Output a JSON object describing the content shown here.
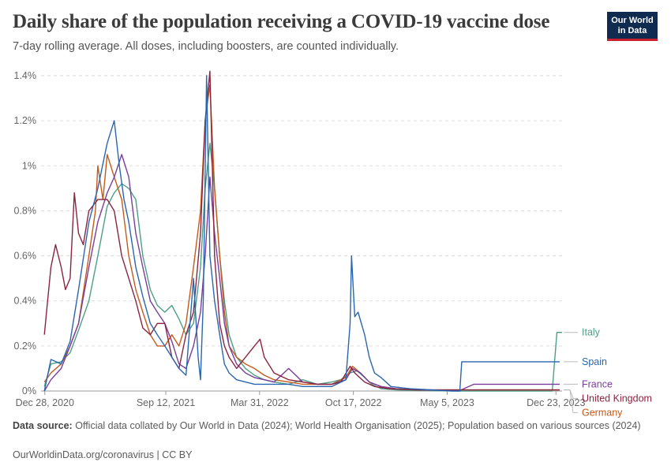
{
  "header": {
    "title": "Daily share of the population receiving a COVID-19 vaccine dose",
    "subtitle": "7-day rolling average. All doses, including boosters, are counted individually.",
    "logo_line1": "Our World",
    "logo_line2": "in Data"
  },
  "footer": {
    "source_label": "Data source:",
    "source_text": "Official data collated by Our World in Data (2024); World Health Organisation (2025); Population based on various sources (2024)",
    "credit": "OurWorldinData.org/coronavirus | CC BY"
  },
  "colors": {
    "Italy": "#4c9f87",
    "Spain": "#2a66b0",
    "France": "#7a3d9c",
    "United Kingdom": "#8a2440",
    "Germany": "#c55a1a"
  },
  "chart_data": {
    "type": "line",
    "title": "Daily share of the population receiving a COVID-19 vaccine dose",
    "subtitle": "7-day rolling average. All doses, including boosters, are counted individually.",
    "x_tick_labels": [
      "Dec 28, 2020",
      "Sep 12, 2021",
      "Mar 31, 2022",
      "Oct 17, 2022",
      "May 5, 2023",
      "Dec 23, 2023"
    ],
    "x_tick_days": [
      0,
      258,
      458,
      658,
      858,
      1090
    ],
    "y_ticks": [
      0,
      0.2,
      0.4,
      0.6,
      0.8,
      1,
      1.2,
      1.4
    ],
    "y_tick_labels": [
      "0%",
      "0.2%",
      "0.4%",
      "0.6%",
      "0.8%",
      "1%",
      "1.2%",
      "1.4%"
    ],
    "ylim": [
      0,
      1.4
    ],
    "y_unit": "%",
    "grid": true,
    "legend_placement": "right",
    "series": [
      {
        "name": "Italy",
        "x": [
          "2020-12-27",
          "2021-01-10",
          "2021-02-01",
          "2021-02-20",
          "2021-03-10",
          "2021-04-01",
          "2021-04-20",
          "2021-05-10",
          "2021-05-25",
          "2021-06-10",
          "2021-06-25",
          "2021-07-10",
          "2021-07-25",
          "2021-08-10",
          "2021-08-25",
          "2021-09-10",
          "2021-09-25",
          "2021-10-10",
          "2021-10-25",
          "2021-11-10",
          "2021-11-25",
          "2021-12-05",
          "2021-12-15",
          "2021-12-25",
          "2022-01-05",
          "2022-01-15",
          "2022-01-25",
          "2022-02-10",
          "2022-03-01",
          "2022-03-20",
          "2022-04-10",
          "2022-05-01",
          "2022-06-01",
          "2022-07-01",
          "2022-08-01",
          "2022-09-01",
          "2022-09-20",
          "2022-10-10",
          "2022-10-25",
          "2022-11-10",
          "2022-11-25",
          "2022-12-15",
          "2023-01-15",
          "2023-03-01",
          "2023-06-01",
          "2023-10-01",
          "2023-12-15",
          "2023-12-25",
          "2024-01-05"
        ],
        "y": [
          0.02,
          0.12,
          0.13,
          0.17,
          0.27,
          0.4,
          0.6,
          0.82,
          0.88,
          0.92,
          0.9,
          0.85,
          0.6,
          0.45,
          0.38,
          0.35,
          0.38,
          0.32,
          0.25,
          0.3,
          0.55,
          0.9,
          1.1,
          0.9,
          0.6,
          0.4,
          0.25,
          0.15,
          0.1,
          0.07,
          0.05,
          0.04,
          0.03,
          0.05,
          0.03,
          0.04,
          0.05,
          0.08,
          0.09,
          0.06,
          0.03,
          0.01,
          0.005,
          0.002,
          0,
          0,
          0,
          0.26,
          0.26
        ]
      },
      {
        "name": "Spain",
        "x": [
          "2020-12-27",
          "2021-01-10",
          "2021-02-01",
          "2021-02-20",
          "2021-03-10",
          "2021-04-01",
          "2021-04-20",
          "2021-05-10",
          "2021-05-25",
          "2021-06-05",
          "2021-06-15",
          "2021-06-25",
          "2021-07-10",
          "2021-07-25",
          "2021-08-10",
          "2021-08-25",
          "2021-09-10",
          "2021-09-25",
          "2021-10-10",
          "2021-10-25",
          "2021-11-10",
          "2021-11-20",
          "2021-11-25",
          "2021-12-01",
          "2021-12-08",
          "2021-12-15",
          "2021-12-25",
          "2022-01-05",
          "2022-01-15",
          "2022-01-25",
          "2022-02-10",
          "2022-03-01",
          "2022-03-20",
          "2022-04-10",
          "2022-05-01",
          "2022-06-01",
          "2022-07-01",
          "2022-08-01",
          "2022-09-01",
          "2022-10-01",
          "2022-10-10",
          "2022-10-13",
          "2022-10-20",
          "2022-10-27",
          "2022-11-10",
          "2022-11-20",
          "2022-12-01",
          "2022-12-15",
          "2023-01-05",
          "2023-02-15",
          "2023-05-15",
          "2023-06-01",
          "2023-06-05",
          "2023-12-31"
        ],
        "y": [
          0,
          0.14,
          0.12,
          0.22,
          0.45,
          0.75,
          0.9,
          1.1,
          1.2,
          1.0,
          0.85,
          0.75,
          0.55,
          0.42,
          0.3,
          0.25,
          0.2,
          0.15,
          0.1,
          0.07,
          0.5,
          0.15,
          0.05,
          0.4,
          1.4,
          0.6,
          0.4,
          0.25,
          0.12,
          0.08,
          0.05,
          0.04,
          0.03,
          0.03,
          0.03,
          0.03,
          0.02,
          0.02,
          0.02,
          0.05,
          0.3,
          0.6,
          0.33,
          0.35,
          0.25,
          0.15,
          0.08,
          0.06,
          0.02,
          0.01,
          0,
          0,
          0.13,
          0.13
        ]
      },
      {
        "name": "France",
        "x": [
          "2020-12-27",
          "2021-01-10",
          "2021-02-01",
          "2021-02-20",
          "2021-03-10",
          "2021-04-01",
          "2021-04-20",
          "2021-05-10",
          "2021-05-25",
          "2021-06-10",
          "2021-06-25",
          "2021-07-10",
          "2021-07-25",
          "2021-08-10",
          "2021-08-25",
          "2021-09-10",
          "2021-09-25",
          "2021-10-10",
          "2021-10-25",
          "2021-11-10",
          "2021-11-25",
          "2021-12-05",
          "2021-12-15",
          "2021-12-25",
          "2022-01-05",
          "2022-01-15",
          "2022-01-25",
          "2022-02-10",
          "2022-03-01",
          "2022-03-20",
          "2022-04-10",
          "2022-05-01",
          "2022-06-01",
          "2022-07-01",
          "2022-08-01",
          "2022-09-01",
          "2022-10-01",
          "2022-10-15",
          "2022-11-01",
          "2022-11-20",
          "2022-12-15",
          "2023-01-15",
          "2023-03-01",
          "2023-06-01",
          "2023-07-01",
          "2023-12-31"
        ],
        "y": [
          0,
          0.05,
          0.1,
          0.2,
          0.3,
          0.55,
          0.75,
          0.88,
          0.95,
          1.05,
          0.95,
          0.7,
          0.55,
          0.4,
          0.35,
          0.3,
          0.22,
          0.12,
          0.1,
          0.2,
          0.35,
          0.6,
          0.95,
          0.7,
          0.5,
          0.3,
          0.2,
          0.12,
          0.08,
          0.06,
          0.05,
          0.04,
          0.1,
          0.04,
          0.03,
          0.03,
          0.05,
          0.1,
          0.08,
          0.04,
          0.02,
          0.01,
          0.005,
          0.002,
          0.03,
          0.03
        ]
      },
      {
        "name": "United Kingdom",
        "x": [
          "2020-12-27",
          "2021-01-03",
          "2021-01-10",
          "2021-01-20",
          "2021-02-01",
          "2021-02-10",
          "2021-02-20",
          "2021-03-01",
          "2021-03-10",
          "2021-03-20",
          "2021-04-01",
          "2021-04-20",
          "2021-05-10",
          "2021-05-25",
          "2021-06-10",
          "2021-06-25",
          "2021-07-10",
          "2021-07-25",
          "2021-08-10",
          "2021-08-25",
          "2021-09-10",
          "2021-09-25",
          "2021-10-10",
          "2021-10-25",
          "2021-11-10",
          "2021-11-25",
          "2021-12-05",
          "2021-12-15",
          "2021-12-25",
          "2022-01-05",
          "2022-01-15",
          "2022-01-25",
          "2022-02-10",
          "2022-03-01",
          "2022-03-20",
          "2022-04-01",
          "2022-04-10",
          "2022-05-01",
          "2022-06-01",
          "2022-07-01",
          "2022-08-01",
          "2022-09-01",
          "2022-09-20",
          "2022-10-10",
          "2022-10-20",
          "2022-11-10",
          "2022-12-01",
          "2023-01-01",
          "2023-03-01",
          "2023-12-31"
        ],
        "y": [
          0.25,
          0.4,
          0.55,
          0.65,
          0.55,
          0.45,
          0.5,
          0.88,
          0.7,
          0.65,
          0.8,
          0.85,
          0.85,
          0.8,
          0.6,
          0.5,
          0.4,
          0.28,
          0.25,
          0.3,
          0.3,
          0.15,
          0.1,
          0.25,
          0.35,
          0.7,
          1.2,
          1.42,
          0.6,
          0.3,
          0.2,
          0.15,
          0.1,
          0.15,
          0.2,
          0.23,
          0.15,
          0.08,
          0.05,
          0.04,
          0.03,
          0.03,
          0.04,
          0.11,
          0.08,
          0.04,
          0.02,
          0.01,
          0.005,
          0.005
        ]
      },
      {
        "name": "Germany",
        "x": [
          "2020-12-27",
          "2021-01-10",
          "2021-02-01",
          "2021-02-20",
          "2021-03-10",
          "2021-04-01",
          "2021-04-15",
          "2021-04-20",
          "2021-05-01",
          "2021-05-10",
          "2021-05-25",
          "2021-06-10",
          "2021-06-25",
          "2021-07-10",
          "2021-07-25",
          "2021-08-10",
          "2021-08-25",
          "2021-09-10",
          "2021-09-25",
          "2021-10-10",
          "2021-10-25",
          "2021-11-10",
          "2021-11-25",
          "2021-12-05",
          "2021-12-15",
          "2021-12-25",
          "2022-01-05",
          "2022-01-15",
          "2022-01-25",
          "2022-02-10",
          "2022-03-01",
          "2022-03-20",
          "2022-04-10",
          "2022-05-01",
          "2022-06-01",
          "2022-07-01",
          "2022-08-01",
          "2022-09-01",
          "2022-10-01",
          "2022-10-15",
          "2022-11-01",
          "2022-11-20",
          "2022-12-15",
          "2023-01-15",
          "2023-03-01",
          "2023-12-31"
        ],
        "y": [
          0.04,
          0.08,
          0.12,
          0.2,
          0.3,
          0.6,
          0.8,
          1.0,
          0.85,
          1.05,
          0.95,
          0.85,
          0.6,
          0.45,
          0.35,
          0.25,
          0.2,
          0.2,
          0.25,
          0.2,
          0.3,
          0.55,
          0.8,
          1.2,
          1.36,
          0.9,
          0.6,
          0.35,
          0.2,
          0.15,
          0.12,
          0.1,
          0.07,
          0.05,
          0.04,
          0.03,
          0.03,
          0.03,
          0.06,
          0.11,
          0.08,
          0.04,
          0.02,
          0.01,
          0.005,
          0.005
        ]
      }
    ],
    "legend": [
      {
        "name": "Italy"
      },
      {
        "name": "Spain"
      },
      {
        "name": "France"
      },
      {
        "name": "United Kingdom"
      },
      {
        "name": "Germany"
      }
    ]
  }
}
